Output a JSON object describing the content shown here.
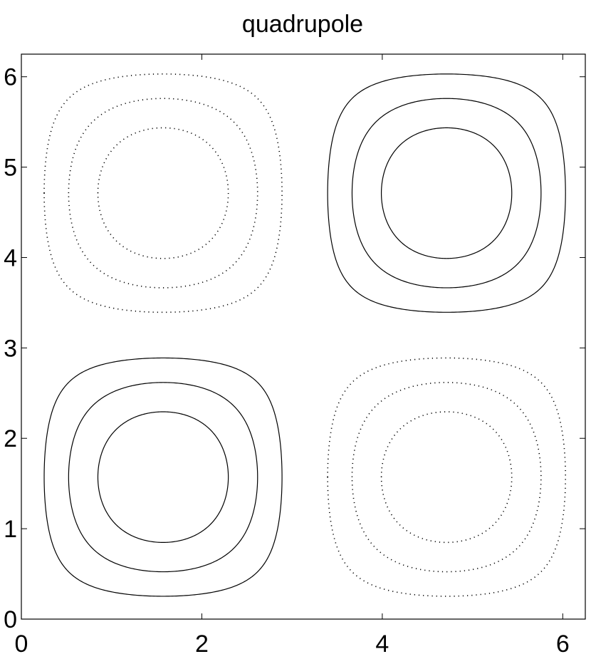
{
  "chart_data": {
    "type": "contour",
    "title": "quadrupole",
    "function": "sin(x)*sin(y)",
    "levels": [
      -0.75,
      -0.5,
      -0.25,
      0.25,
      0.5,
      0.75
    ],
    "color": "#000000",
    "xlim": [
      0,
      6.25
    ],
    "ylim": [
      0,
      6.25
    ],
    "xticks": [
      0,
      2,
      4,
      6
    ],
    "yticks": [
      0,
      1,
      2,
      3,
      4,
      5,
      6
    ]
  }
}
